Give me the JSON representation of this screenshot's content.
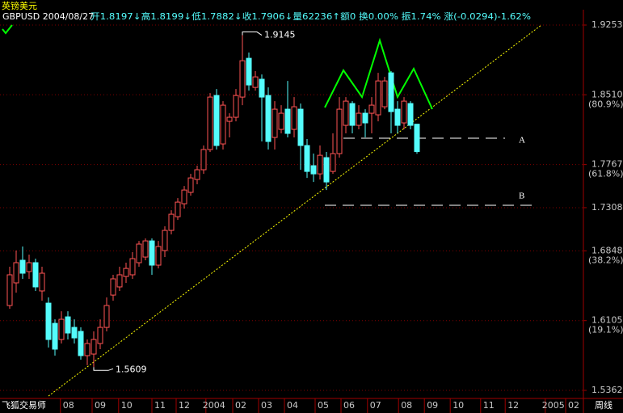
{
  "header": {
    "name": "英镑美元",
    "symbol": "GBPUSD 2004/08/27",
    "quote": "开1.8197↓高1.8199↓低1.7882↓收1.7906↓量62236↑额0 换0.00% 振1.74% 涨(-0.0294)-1.62%"
  },
  "footer": {
    "brand": "飞狐交易师",
    "period": "周线"
  },
  "chart_data": {
    "type": "candlestick",
    "up_color": "#ff5454",
    "down_color": "#54fcfc",
    "grid_color": "#800000",
    "grid": true,
    "open": [
      1.6266,
      1.6507,
      1.6748,
      1.6627,
      1.6722,
      1.6421,
      1.6291,
      1.6076,
      1.5904,
      1.6145,
      1.6033,
      1.599,
      1.5732,
      1.5749,
      1.5861,
      1.6033,
      1.6377,
      1.6464,
      1.6575,
      1.6593,
      1.6722,
      1.6782,
      1.6954,
      1.6696,
      1.6851,
      1.7066,
      1.7212,
      1.735,
      1.7471,
      1.7608,
      1.7712,
      1.7927,
      1.8503,
      1.7987,
      1.8228,
      1.8271,
      1.8486,
      1.8899,
      1.8589,
      1.8676,
      1.8503,
      1.8056,
      1.8142,
      1.8357,
      1.8142,
      1.8357,
      1.797,
      1.7755,
      1.7668,
      1.7841,
      1.7694,
      1.7884,
      1.8185,
      1.8417,
      1.8185,
      1.8314,
      1.8314,
      1.8297,
      1.8383,
      1.8744,
      1.8357,
      1.8211,
      1.8417,
      1.8197
    ],
    "high": [
      1.6679,
      1.6851,
      1.6894,
      1.6808,
      1.6765,
      1.6679,
      1.6352,
      1.6119,
      1.6205,
      1.6205,
      1.6119,
      1.6033,
      1.5904,
      1.599,
      1.6119,
      1.6352,
      1.6593,
      1.6679,
      1.6722,
      1.6834,
      1.6954,
      1.698,
      1.698,
      1.6954,
      1.7109,
      1.7281,
      1.741,
      1.7539,
      1.7668,
      1.7755,
      1.797,
      1.8529,
      1.8572,
      1.8443,
      1.8314,
      1.8572,
      1.9145,
      1.896,
      1.8762,
      1.8727,
      1.8589,
      1.8443,
      1.84,
      1.8658,
      1.8486,
      1.8417,
      1.8039,
      1.7884,
      1.797,
      1.7901,
      1.8099,
      1.8486,
      1.8486,
      1.8443,
      1.84,
      1.8357,
      1.8486,
      1.8744,
      1.8701,
      1.8762,
      1.8443,
      1.8486,
      1.8443,
      1.8199
    ],
    "low": [
      1.6231,
      1.6403,
      1.655,
      1.655,
      1.6421,
      1.6317,
      1.5818,
      1.5732,
      1.5861,
      1.5904,
      1.5861,
      1.5689,
      1.563,
      1.5609,
      1.5801,
      1.599,
      1.6317,
      1.6421,
      1.6507,
      1.655,
      1.6679,
      1.6748,
      1.6593,
      1.6661,
      1.6782,
      1.7023,
      1.7178,
      1.7298,
      1.7436,
      1.7557,
      1.7668,
      1.7901,
      1.7927,
      1.7927,
      1.8056,
      1.8228,
      1.84,
      1.8555,
      1.8555,
      1.8013,
      1.7927,
      1.7927,
      1.8099,
      1.8056,
      1.8056,
      1.7712,
      1.7625,
      1.7582,
      1.7608,
      1.7496,
      1.7668,
      1.7841,
      1.8099,
      1.8099,
      1.8142,
      1.8056,
      1.8099,
      1.8228,
      1.8357,
      1.8099,
      1.8099,
      1.8142,
      1.8142,
      1.7882
    ],
    "close": [
      1.6593,
      1.6722,
      1.661,
      1.6722,
      1.6464,
      1.661,
      1.5904,
      1.5801,
      1.6119,
      1.5973,
      1.5921,
      1.5732,
      1.5861,
      1.5904,
      1.6033,
      1.6266,
      1.655,
      1.6593,
      1.6661,
      1.6765,
      1.692,
      1.6954,
      1.6696,
      1.6894,
      1.7066,
      1.7238,
      1.7367,
      1.7496,
      1.7625,
      1.7712,
      1.7927,
      1.8486,
      1.797,
      1.84,
      1.8271,
      1.8503,
      1.8873,
      1.8615,
      1.8701,
      1.8486,
      1.8013,
      1.8357,
      1.8314,
      1.8099,
      1.8383,
      1.797,
      1.7694,
      1.7668,
      1.7866,
      1.7582,
      1.7884,
      1.8357,
      1.8443,
      1.8185,
      1.8314,
      1.8211,
      1.84,
      1.8658,
      1.8658,
      1.8331,
      1.8185,
      1.8443,
      1.8185,
      1.7906
    ],
    "xlim": [
      -1.5,
      88.75
    ],
    "ylim": [
      1.5362,
      1.9253
    ],
    "xticks": [
      {
        "value": 9.1,
        "label": "08"
      },
      {
        "value": 14,
        "label": "09"
      },
      {
        "value": 18.1,
        "label": "10"
      },
      {
        "value": 23.25,
        "label": "11"
      },
      {
        "value": 27,
        "label": "12"
      },
      {
        "value": 31.6,
        "label": "2004"
      },
      {
        "value": 35.75,
        "label": "02"
      },
      {
        "value": 39.75,
        "label": "03"
      },
      {
        "value": 43.75,
        "label": "04"
      },
      {
        "value": 48.5,
        "label": "05"
      },
      {
        "value": 52.5,
        "label": "06"
      },
      {
        "value": 56.6,
        "label": "07"
      },
      {
        "value": 61.4,
        "label": "08"
      },
      {
        "value": 65.4,
        "label": "09"
      },
      {
        "value": 69.4,
        "label": "10"
      },
      {
        "value": 74.1,
        "label": "11"
      },
      {
        "value": 77.9,
        "label": "12"
      },
      {
        "value": 84.1,
        "label": "2005"
      },
      {
        "value": 87.25,
        "label": "02"
      }
    ],
    "yticks": [
      {
        "value": 1.9253,
        "label": "1.9253"
      },
      {
        "value": 1.851,
        "label": "1.8510"
      },
      {
        "value": 1.7767,
        "label": "1.7767"
      },
      {
        "value": 1.7308,
        "label": "1.7308"
      },
      {
        "value": 1.6848,
        "label": "1.6848"
      },
      {
        "value": 1.6105,
        "label": "1.6105"
      },
      {
        "value": 1.5362,
        "label": "1.5362"
      }
    ],
    "ytick_notes": [
      {
        "value": 1.851,
        "label": "(80.9%)"
      },
      {
        "value": 1.7767,
        "label": "(61.8%)"
      },
      {
        "value": 1.6848,
        "label": "(38.2%)"
      },
      {
        "value": 1.6105,
        "label": "(19.1%)"
      }
    ],
    "annotations": {
      "level_a": "A",
      "level_b": "B"
    }
  }
}
